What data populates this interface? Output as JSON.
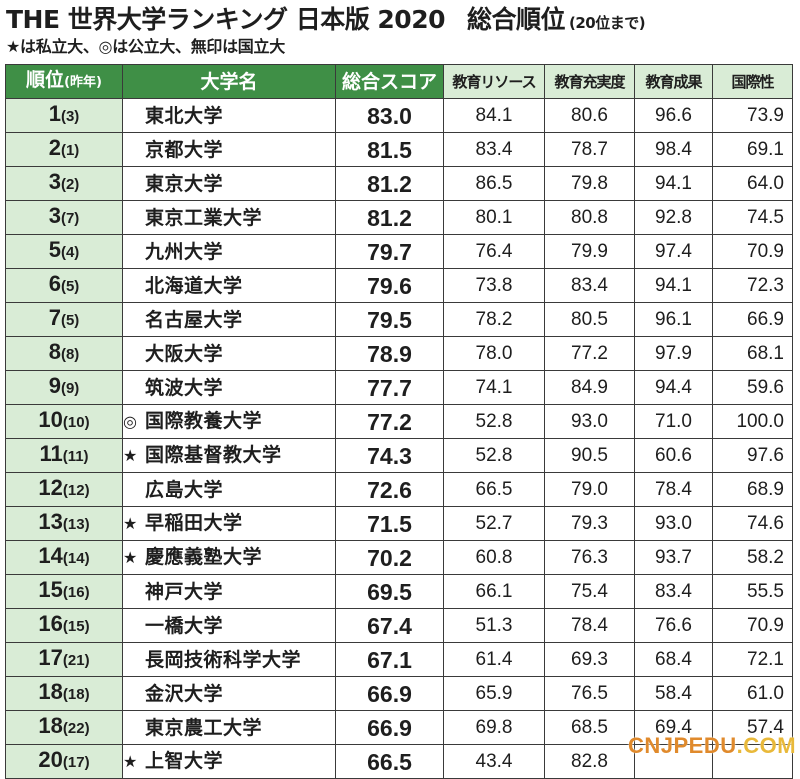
{
  "header": {
    "title": "THE 世界大学ランキング 日本版 2020",
    "title_right": "総合順位",
    "title_note": "(20位まで)",
    "legend": "★は私立大、◎は公立大、無印は国立大"
  },
  "table": {
    "columns": [
      "順位",
      "(昨年)",
      "大学名",
      "総合スコア",
      "教育リソース",
      "教育充実度",
      "教育成果",
      "国際性"
    ],
    "rows": [
      {
        "rank": "1",
        "prev": "(3)",
        "mark": "",
        "name": "東北大学",
        "score": "83.0",
        "resources": "84.1",
        "engagement": "80.6",
        "outcomes": "96.6",
        "international": "73.9"
      },
      {
        "rank": "2",
        "prev": "(1)",
        "mark": "",
        "name": "京都大学",
        "score": "81.5",
        "resources": "83.4",
        "engagement": "78.7",
        "outcomes": "98.4",
        "international": "69.1"
      },
      {
        "rank": "3",
        "prev": "(2)",
        "mark": "",
        "name": "東京大学",
        "score": "81.2",
        "resources": "86.5",
        "engagement": "79.8",
        "outcomes": "94.1",
        "international": "64.0"
      },
      {
        "rank": "3",
        "prev": "(7)",
        "mark": "",
        "name": "東京工業大学",
        "score": "81.2",
        "resources": "80.1",
        "engagement": "80.8",
        "outcomes": "92.8",
        "international": "74.5"
      },
      {
        "rank": "5",
        "prev": "(4)",
        "mark": "",
        "name": "九州大学",
        "score": "79.7",
        "resources": "76.4",
        "engagement": "79.9",
        "outcomes": "97.4",
        "international": "70.9"
      },
      {
        "rank": "6",
        "prev": "(5)",
        "mark": "",
        "name": "北海道大学",
        "score": "79.6",
        "resources": "73.8",
        "engagement": "83.4",
        "outcomes": "94.1",
        "international": "72.3"
      },
      {
        "rank": "7",
        "prev": "(5)",
        "mark": "",
        "name": "名古屋大学",
        "score": "79.5",
        "resources": "78.2",
        "engagement": "80.5",
        "outcomes": "96.1",
        "international": "66.9"
      },
      {
        "rank": "8",
        "prev": "(8)",
        "mark": "",
        "name": "大阪大学",
        "score": "78.9",
        "resources": "78.0",
        "engagement": "77.2",
        "outcomes": "97.9",
        "international": "68.1"
      },
      {
        "rank": "9",
        "prev": "(9)",
        "mark": "",
        "name": "筑波大学",
        "score": "77.7",
        "resources": "74.1",
        "engagement": "84.9",
        "outcomes": "94.4",
        "international": "59.6"
      },
      {
        "rank": "10",
        "prev": "(10)",
        "mark": "◎",
        "name": "国際教養大学",
        "score": "77.2",
        "resources": "52.8",
        "engagement": "93.0",
        "outcomes": "71.0",
        "international": "100.0"
      },
      {
        "rank": "11",
        "prev": "(11)",
        "mark": "★",
        "name": "国際基督教大学",
        "score": "74.3",
        "resources": "52.8",
        "engagement": "90.5",
        "outcomes": "60.6",
        "international": "97.6"
      },
      {
        "rank": "12",
        "prev": "(12)",
        "mark": "",
        "name": "広島大学",
        "score": "72.6",
        "resources": "66.5",
        "engagement": "79.0",
        "outcomes": "78.4",
        "international": "68.9"
      },
      {
        "rank": "13",
        "prev": "(13)",
        "mark": "★",
        "name": "早稲田大学",
        "score": "71.5",
        "resources": "52.7",
        "engagement": "79.3",
        "outcomes": "93.0",
        "international": "74.6"
      },
      {
        "rank": "14",
        "prev": "(14)",
        "mark": "★",
        "name": "慶應義塾大学",
        "score": "70.2",
        "resources": "60.8",
        "engagement": "76.3",
        "outcomes": "93.7",
        "international": "58.2"
      },
      {
        "rank": "15",
        "prev": "(16)",
        "mark": "",
        "name": "神戸大学",
        "score": "69.5",
        "resources": "66.1",
        "engagement": "75.4",
        "outcomes": "83.4",
        "international": "55.5"
      },
      {
        "rank": "16",
        "prev": "(15)",
        "mark": "",
        "name": "一橋大学",
        "score": "67.4",
        "resources": "51.3",
        "engagement": "78.4",
        "outcomes": "76.6",
        "international": "70.9"
      },
      {
        "rank": "17",
        "prev": "(21)",
        "mark": "",
        "name": "長岡技術科学大学",
        "score": "67.1",
        "resources": "61.4",
        "engagement": "69.3",
        "outcomes": "68.4",
        "international": "72.1"
      },
      {
        "rank": "18",
        "prev": "(18)",
        "mark": "",
        "name": "金沢大学",
        "score": "66.9",
        "resources": "65.9",
        "engagement": "76.5",
        "outcomes": "58.4",
        "international": "61.0"
      },
      {
        "rank": "18",
        "prev": "(22)",
        "mark": "",
        "name": "東京農工大学",
        "score": "66.9",
        "resources": "69.8",
        "engagement": "68.5",
        "outcomes": "69.4",
        "international": "57.4"
      },
      {
        "rank": "20",
        "prev": "(17)",
        "mark": "★",
        "name": "上智大学",
        "score": "66.5",
        "resources": "43.4",
        "engagement": "82.8",
        "outcomes": "",
        "international": ""
      }
    ]
  },
  "watermark": {
    "text_main": "CNJPEDU",
    "text_tail": ".COM"
  },
  "colors": {
    "header_green": "#3f8f46",
    "header_light_green": "#d9ecd6",
    "rank_cell_bg": "#d9ecd6",
    "watermark_orange": "#e08a2c",
    "watermark_yellow": "#e9b93a"
  }
}
